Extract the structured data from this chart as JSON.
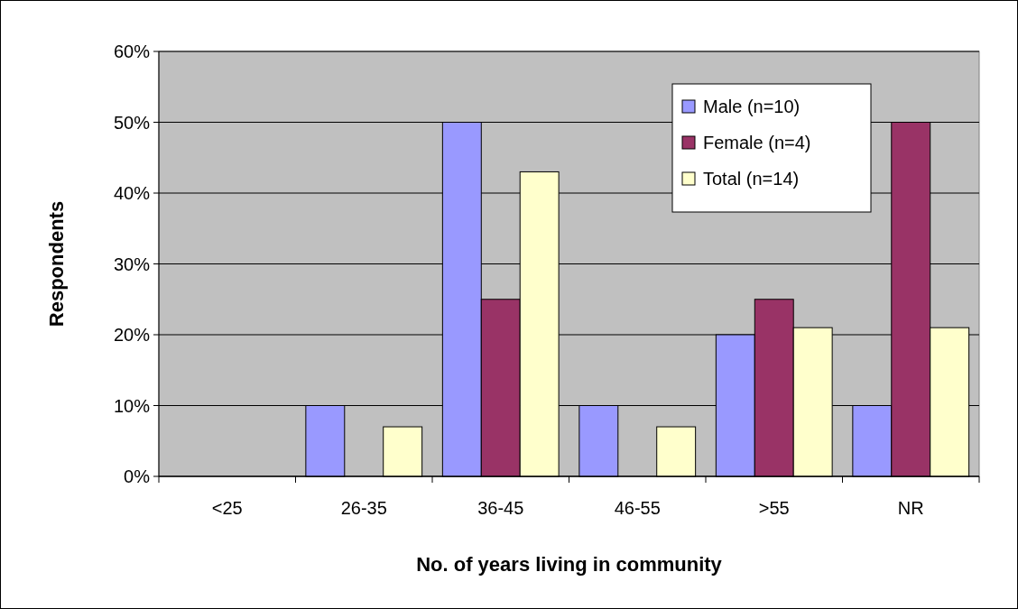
{
  "chart_data": {
    "type": "bar",
    "xlabel": "No. of years living in community",
    "ylabel": "Respondents",
    "categories": [
      "<25",
      "26-35",
      "36-45",
      "46-55",
      ">55",
      "NR"
    ],
    "series": [
      {
        "name": "Male (n=10)",
        "color": "#9999ff",
        "values": [
          0,
          10,
          50,
          10,
          20,
          10
        ]
      },
      {
        "name": "Female (n=4)",
        "color": "#993366",
        "values": [
          0,
          0,
          25,
          0,
          25,
          50
        ]
      },
      {
        "name": "Total (n=14)",
        "color": "#ffffcc",
        "values": [
          0,
          7,
          43,
          7,
          21,
          21
        ]
      }
    ],
    "ylim": [
      0,
      60
    ],
    "yticks": [
      {
        "value": 0,
        "label": "0%"
      },
      {
        "value": 10,
        "label": "10%"
      },
      {
        "value": 20,
        "label": "20%"
      },
      {
        "value": 30,
        "label": "30%"
      },
      {
        "value": 40,
        "label": "40%"
      },
      {
        "value": 50,
        "label": "50%"
      },
      {
        "value": 60,
        "label": "60%"
      }
    ],
    "grid": "y",
    "legend": "top right"
  }
}
